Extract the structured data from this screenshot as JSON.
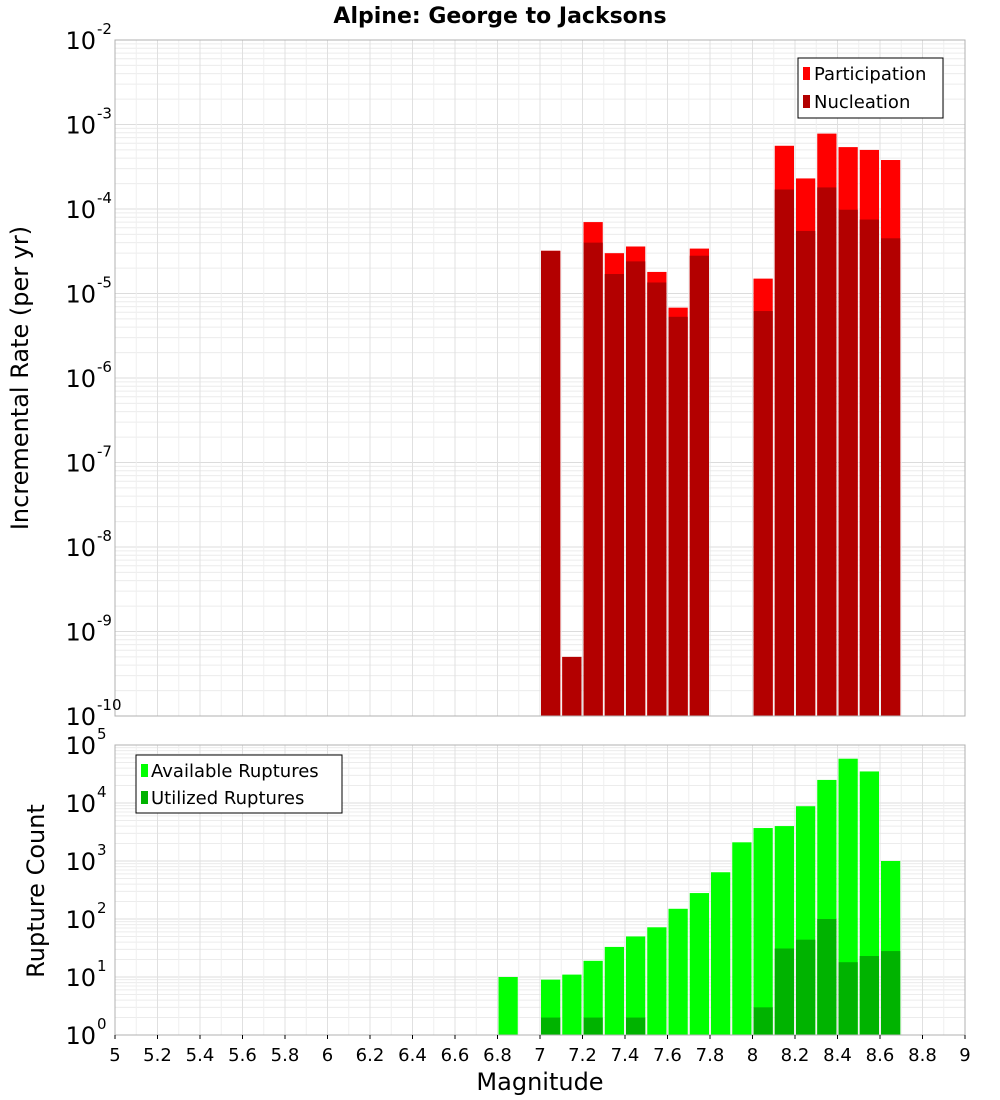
{
  "chart_data": [
    {
      "type": "bar",
      "title": "Alpine: George to Jacksons",
      "ylabel": "Incremental Rate (per yr)",
      "xlabel": "",
      "xlim": [
        5,
        9
      ],
      "ylim_exp": [
        -10,
        -2
      ],
      "yscale": "log",
      "grid": true,
      "legend_position": "top-right",
      "series": [
        {
          "name": "Participation",
          "color": "#ff0000",
          "x": [
            7.05,
            7.15,
            7.25,
            7.35,
            7.45,
            7.55,
            7.65,
            7.75,
            8.05,
            8.15,
            8.25,
            8.35,
            8.45,
            8.55,
            8.65
          ],
          "values": [
            3.2e-05,
            5e-10,
            7e-05,
            3e-05,
            3.6e-05,
            1.8e-05,
            6.8e-06,
            3.4e-05,
            1.5e-05,
            0.00056,
            0.00023,
            0.00078,
            0.00054,
            0.0005,
            0.00038
          ]
        },
        {
          "name": "Nucleation",
          "color": "#b30000",
          "x": [
            7.05,
            7.15,
            7.25,
            7.35,
            7.45,
            7.55,
            7.65,
            7.75,
            8.05,
            8.15,
            8.25,
            8.35,
            8.45,
            8.55,
            8.65
          ],
          "values": [
            3.2e-05,
            5e-10,
            4e-05,
            1.7e-05,
            2.4e-05,
            1.35e-05,
            5.3e-06,
            2.8e-05,
            6.2e-06,
            0.00017,
            5.5e-05,
            0.00018,
            9.8e-05,
            7.5e-05,
            4.5e-05
          ]
        }
      ],
      "yticks": [
        {
          "base": "10",
          "exp": "-10"
        },
        {
          "base": "10",
          "exp": "-9"
        },
        {
          "base": "10",
          "exp": "-8"
        },
        {
          "base": "10",
          "exp": "-7"
        },
        {
          "base": "10",
          "exp": "-6"
        },
        {
          "base": "10",
          "exp": "-5"
        },
        {
          "base": "10",
          "exp": "-4"
        },
        {
          "base": "10",
          "exp": "-3"
        },
        {
          "base": "10",
          "exp": "-2"
        }
      ]
    },
    {
      "type": "bar",
      "title": "",
      "ylabel": "Rupture Count",
      "xlabel": "Magnitude",
      "xlim": [
        5,
        9
      ],
      "ylim_exp": [
        0,
        5
      ],
      "yscale": "log",
      "grid": true,
      "legend_position": "top-left",
      "series": [
        {
          "name": "Available Ruptures",
          "color": "#00ff00",
          "x": [
            6.85,
            7.05,
            7.15,
            7.25,
            7.35,
            7.45,
            7.55,
            7.65,
            7.75,
            7.85,
            7.95,
            8.05,
            8.15,
            8.25,
            8.35,
            8.45,
            8.55,
            8.65
          ],
          "values": [
            10,
            9,
            11,
            19,
            33,
            50,
            72,
            150,
            280,
            640,
            2100,
            3700,
            4000,
            8800,
            25000,
            58000,
            35000,
            1000
          ]
        },
        {
          "name": "Utilized Ruptures",
          "color": "#00b300",
          "x": [
            7.05,
            7.15,
            7.25,
            7.35,
            7.45,
            7.55,
            7.65,
            7.75,
            8.05,
            8.15,
            8.25,
            8.35,
            8.45,
            8.55,
            8.65
          ],
          "values": [
            2,
            1,
            2,
            1,
            2,
            1,
            1,
            1,
            3,
            31,
            44,
            100,
            18,
            23,
            28
          ]
        }
      ],
      "yticks": [
        {
          "base": "10",
          "exp": "0"
        },
        {
          "base": "10",
          "exp": "1"
        },
        {
          "base": "10",
          "exp": "2"
        },
        {
          "base": "10",
          "exp": "3"
        },
        {
          "base": "10",
          "exp": "4"
        },
        {
          "base": "10",
          "exp": "5"
        }
      ],
      "xticks": [
        "5",
        "5.2",
        "5.4",
        "5.6",
        "5.8",
        "6",
        "6.2",
        "6.4",
        "6.6",
        "6.8",
        "7",
        "7.2",
        "7.4",
        "7.6",
        "7.8",
        "8",
        "8.2",
        "8.4",
        "8.6",
        "8.8",
        "9"
      ]
    }
  ]
}
